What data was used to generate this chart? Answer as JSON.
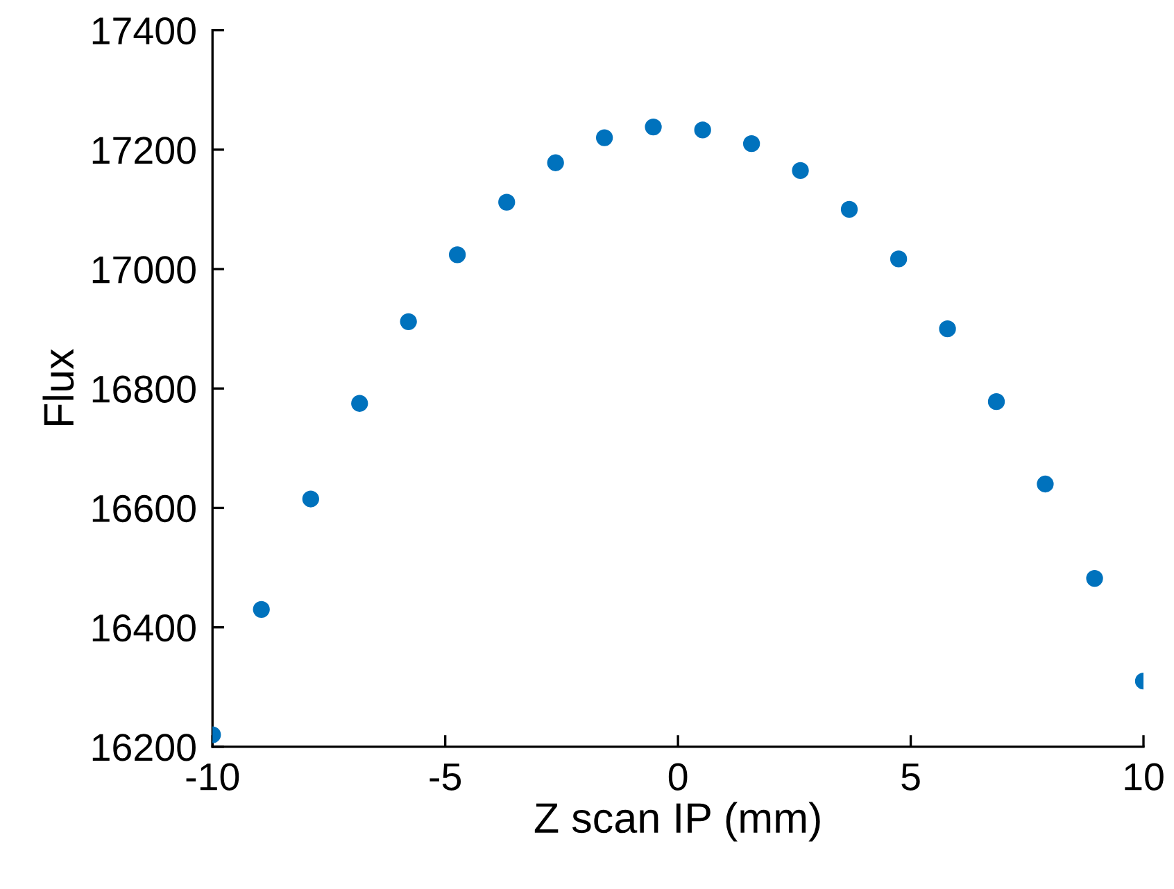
{
  "chart_data": {
    "type": "scatter",
    "xlabel": "Z scan IP (mm)",
    "ylabel": "Flux",
    "x": [
      -10,
      -8.95,
      -7.89,
      -6.84,
      -5.79,
      -4.74,
      -3.68,
      -2.63,
      -1.58,
      -0.53,
      0.53,
      1.58,
      2.63,
      3.68,
      4.74,
      5.79,
      6.84,
      7.89,
      8.95,
      10
    ],
    "series": [
      {
        "color": "#0072bd",
        "values": [
          16220,
          16430,
          16615,
          16775,
          16912,
          17024,
          17112,
          17178,
          17220,
          17238,
          17233,
          17210,
          17165,
          17100,
          17017,
          16900,
          16778,
          16640,
          16482,
          16310
        ]
      }
    ],
    "xlim": [
      -10,
      10
    ],
    "xticks": [
      -10,
      -5,
      0,
      5,
      10
    ],
    "ylim": [
      16200,
      17400
    ],
    "yticks": [
      16200,
      16400,
      16600,
      16800,
      17000,
      17200,
      17400
    ],
    "marker": "circle",
    "grid": false,
    "legend": false
  }
}
